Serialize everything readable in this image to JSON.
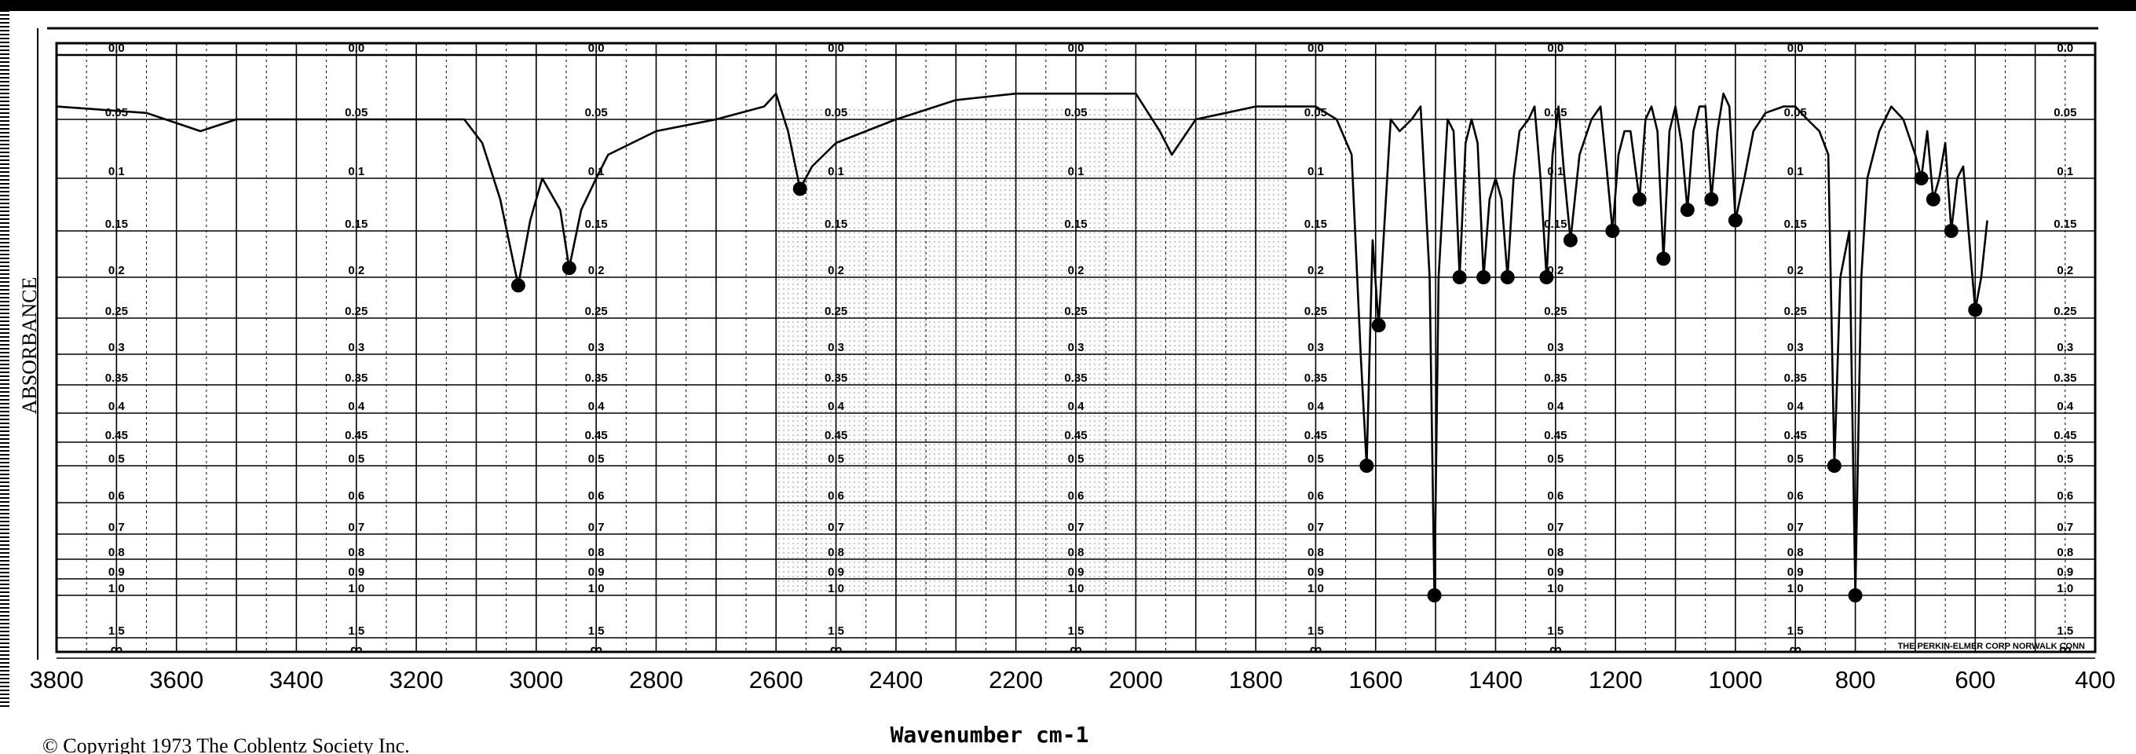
{
  "chart_data": {
    "type": "line",
    "title": "",
    "xlabel": "Wavenumber cm-1",
    "ylabel": "ABSORBANCE",
    "xlim": [
      3800,
      400
    ],
    "ylim": [
      0.0,
      2.0
    ],
    "x_ticks": [
      3800,
      3600,
      3400,
      3200,
      3000,
      2800,
      2600,
      2400,
      2200,
      2000,
      1800,
      1600,
      1400,
      1200,
      1000,
      800,
      600,
      400
    ],
    "x_tick_labels": [
      "3800",
      "3600",
      "3400",
      "3200",
      "3000",
      "2800",
      "2600",
      "2400",
      "2200",
      "2000",
      "1800",
      "1600",
      "1400",
      "1200",
      "1000",
      "800",
      "600",
      "400"
    ],
    "y_ticks": [
      0.0,
      0.05,
      0.1,
      0.15,
      0.2,
      0.25,
      0.3,
      0.35,
      0.4,
      0.45,
      0.5,
      0.6,
      0.7,
      0.8,
      0.9,
      1.0,
      1.5,
      2.0
    ],
    "y_tick_labels": [
      "0.0",
      "0.05",
      "0.1",
      "0.15",
      "0.2",
      "0.25",
      "0.3",
      "0.35",
      "0.4",
      "0.45",
      "0.5",
      "0.6",
      "0.7",
      "0.8",
      "0.9",
      "1.0",
      "1.5",
      "∞"
    ],
    "y_label_columns_wavenumber": [
      3700,
      3300,
      2900,
      2500,
      2100,
      1700,
      1300,
      900,
      450
    ],
    "grid": true,
    "series": [
      {
        "x": [
          3800,
          3650,
          3560,
          3500,
          3300,
          3200,
          3120,
          3090,
          3060,
          3030,
          3010,
          2990,
          2960,
          2945,
          2925,
          2900,
          2880,
          2800,
          2700,
          2620,
          2600,
          2580,
          2560,
          2540,
          2500,
          2400,
          2300,
          2200,
          2000,
          1960,
          1940,
          1900,
          1850,
          1800,
          1700,
          1665,
          1640,
          1625,
          1615,
          1605,
          1595,
          1585,
          1575,
          1560,
          1540,
          1525,
          1510,
          1502,
          1495,
          1480,
          1470,
          1460,
          1450,
          1440,
          1430,
          1420,
          1410,
          1400,
          1390,
          1380,
          1370,
          1360,
          1345,
          1335,
          1325,
          1315,
          1305,
          1295,
          1285,
          1275,
          1260,
          1240,
          1225,
          1215,
          1205,
          1195,
          1185,
          1175,
          1160,
          1150,
          1140,
          1130,
          1120,
          1110,
          1100,
          1090,
          1080,
          1070,
          1060,
          1050,
          1040,
          1030,
          1020,
          1010,
          1000,
          985,
          970,
          950,
          920,
          900,
          880,
          860,
          845,
          835,
          825,
          810,
          800,
          790,
          780,
          760,
          740,
          720,
          700,
          690,
          680,
          670,
          660,
          650,
          640,
          630,
          620,
          610,
          600,
          590,
          580
        ],
        "y": [
          0.04,
          0.045,
          0.06,
          0.05,
          0.05,
          0.05,
          0.05,
          0.07,
          0.12,
          0.21,
          0.14,
          0.1,
          0.13,
          0.19,
          0.13,
          0.1,
          0.08,
          0.06,
          0.05,
          0.04,
          0.03,
          0.06,
          0.11,
          0.09,
          0.07,
          0.05,
          0.035,
          0.03,
          0.03,
          0.06,
          0.08,
          0.05,
          0.045,
          0.04,
          0.04,
          0.05,
          0.08,
          0.3,
          0.5,
          0.16,
          0.26,
          0.14,
          0.05,
          0.06,
          0.05,
          0.04,
          0.2,
          1.0,
          0.2,
          0.05,
          0.06,
          0.2,
          0.07,
          0.05,
          0.07,
          0.2,
          0.12,
          0.1,
          0.12,
          0.2,
          0.1,
          0.06,
          0.05,
          0.04,
          0.1,
          0.2,
          0.08,
          0.04,
          0.1,
          0.16,
          0.08,
          0.05,
          0.04,
          0.09,
          0.15,
          0.08,
          0.06,
          0.06,
          0.12,
          0.05,
          0.04,
          0.06,
          0.18,
          0.06,
          0.04,
          0.07,
          0.13,
          0.06,
          0.04,
          0.04,
          0.12,
          0.06,
          0.03,
          0.04,
          0.14,
          0.1,
          0.06,
          0.045,
          0.04,
          0.04,
          0.05,
          0.06,
          0.08,
          0.5,
          0.2,
          0.15,
          1.0,
          0.2,
          0.1,
          0.06,
          0.04,
          0.05,
          0.08,
          0.1,
          0.06,
          0.12,
          0.1,
          0.07,
          0.15,
          0.1,
          0.09,
          0.16,
          0.24,
          0.2,
          0.14
        ],
        "color": "#000000"
      }
    ],
    "annotations": [
      {
        "text": "© Copyright 1973  The Coblentz Society  Inc.",
        "position": "bottom-left"
      },
      {
        "text": "THE PERKIN-ELMER CORP NORWALK CONN",
        "position": "bottom-right-inside"
      }
    ]
  }
}
